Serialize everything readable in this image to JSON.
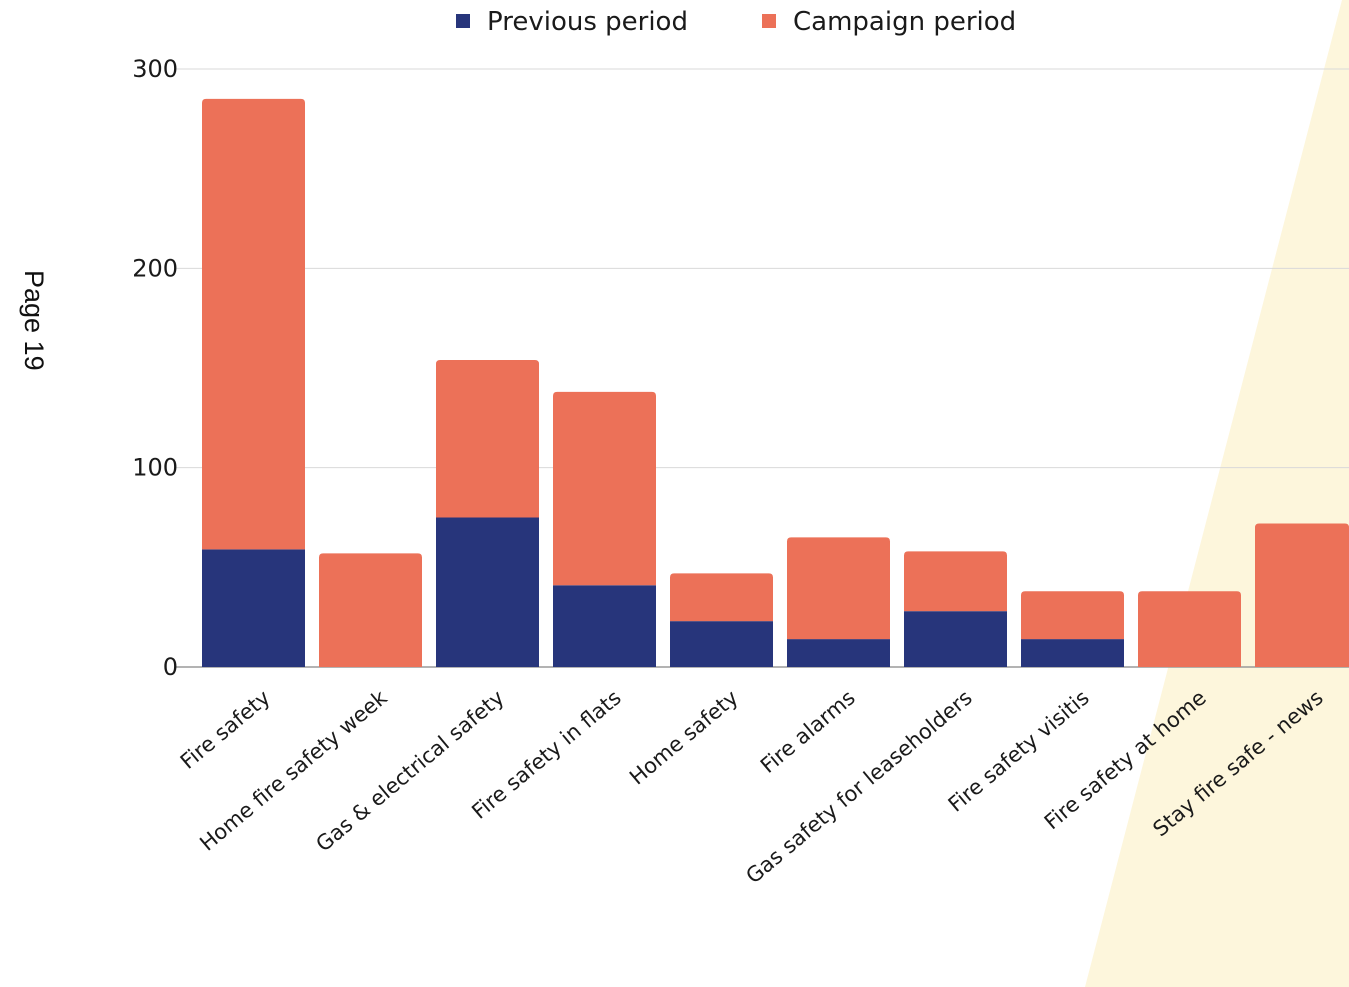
{
  "page": {
    "label": "Page 19"
  },
  "chart_data": {
    "type": "bar",
    "stacked": true,
    "categories": [
      "Fire safety",
      "Home fire safety week",
      "Gas & electrical safety",
      "Fire safety in flats",
      "Home safety",
      "Fire alarms",
      "Gas safety for leaseholders",
      "Fire safety visitis",
      "Fire safety at home",
      "Stay fire safe - news"
    ],
    "series": [
      {
        "name": "Previous period",
        "color": "#27357b",
        "values": [
          59,
          0,
          75,
          41,
          23,
          14,
          28,
          14,
          0,
          0
        ]
      },
      {
        "name": "Campaign period",
        "color": "#ec7158",
        "values": [
          226,
          57,
          79,
          97,
          24,
          51,
          30,
          24,
          38,
          72
        ]
      }
    ],
    "ylim": [
      0,
      300
    ],
    "yticks": [
      0,
      100,
      200,
      300
    ],
    "grid": true,
    "legend_position": "top",
    "xlabel": "",
    "ylabel": "",
    "background_accent": "#fdf6dc"
  }
}
